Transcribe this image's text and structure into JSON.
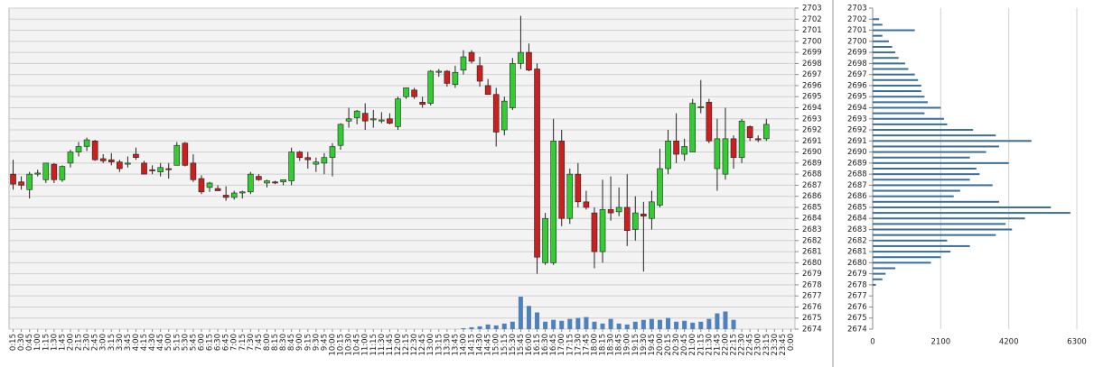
{
  "chart_data": [
    {
      "type": "candlestick",
      "categories": [
        "0:15",
        "0:30",
        "0:45",
        "1:00",
        "1:15",
        "1:30",
        "1:45",
        "2:00",
        "2:15",
        "2:30",
        "2:45",
        "3:00",
        "3:15",
        "3:30",
        "3:45",
        "4:00",
        "4:15",
        "4:30",
        "4:45",
        "5:00",
        "5:15",
        "5:30",
        "5:45",
        "6:00",
        "6:15",
        "6:30",
        "6:45",
        "7:00",
        "7:15",
        "7:30",
        "7:45",
        "8:00",
        "8:15",
        "8:30",
        "8:45",
        "9:00",
        "9:15",
        "9:30",
        "9:45",
        "10:00",
        "10:15",
        "10:30",
        "10:45",
        "11:00",
        "11:15",
        "11:30",
        "11:45",
        "12:00",
        "12:15",
        "12:30",
        "12:45",
        "13:00",
        "13:15",
        "13:30",
        "13:45",
        "14:00",
        "14:15",
        "14:30",
        "14:45",
        "15:00",
        "15:15",
        "15:30",
        "15:45",
        "16:00",
        "16:15",
        "16:30",
        "16:45",
        "17:00",
        "17:15",
        "17:30",
        "17:45",
        "18:00",
        "18:15",
        "18:30",
        "18:45",
        "19:00",
        "19:15",
        "19:30",
        "19:45",
        "20:00",
        "20:15",
        "20:30",
        "20:45",
        "21:00",
        "21:15",
        "21:30",
        "21:45",
        "22:00",
        "22:15",
        "22:30",
        "22:45",
        "23:00",
        "23:15",
        "23:30",
        "23:45",
        "0:00"
      ],
      "open": [
        2688.0,
        2687.3,
        2686.6,
        2688.0,
        2687.5,
        2688.9,
        2687.5,
        2689.0,
        2690.0,
        2690.5,
        2691.0,
        2689.4,
        2689.3,
        2689.1,
        2688.9,
        2689.8,
        2689.0,
        2688.4,
        2688.2,
        2688.5,
        2688.8,
        2690.8,
        2689.0,
        2687.6,
        2686.8,
        2686.7,
        2686.1,
        2685.9,
        2686.3,
        2686.4,
        2687.8,
        2687.2,
        2687.3,
        2687.3,
        2687.4,
        2690.0,
        2689.5,
        2688.9,
        2689.0,
        2689.5,
        2690.6,
        2692.8,
        2693.1,
        2693.5,
        2692.9,
        2692.8,
        2693.0,
        2692.3,
        2695.0,
        2695.6,
        2694.5,
        2694.4,
        2697.2,
        2697.3,
        2696.1,
        2697.4,
        2699.0,
        2697.8,
        2696.0,
        2695.2,
        2692.0,
        2694.0,
        2698.0,
        2699.0,
        2697.5,
        2680.0,
        2680.0,
        2691.0,
        2684.0,
        2688.0,
        2685.5,
        2684.5,
        2681.0,
        2684.8,
        2684.6,
        2685.0,
        2683.0,
        2684.4,
        2684.0,
        2685.2,
        2688.5,
        2691.0,
        2689.8,
        2690.0,
        2694.0,
        2694.5,
        2688.5,
        2688.0,
        2691.2,
        2689.5,
        2692.3,
        2691.2,
        2691.2,
        null,
        null,
        null
      ],
      "high": [
        2689.3,
        2687.8,
        2688.2,
        2688.4,
        2689.0,
        2689.0,
        2688.8,
        2690.2,
        2690.9,
        2691.3,
        2691.1,
        2689.8,
        2689.9,
        2689.3,
        2689.6,
        2690.4,
        2689.2,
        2688.8,
        2689.0,
        2689.0,
        2690.9,
        2690.9,
        2689.8,
        2687.9,
        2687.3,
        2687.0,
        2686.9,
        2686.5,
        2686.5,
        2688.2,
        2688.0,
        2687.5,
        2687.4,
        2687.5,
        2690.4,
        2690.1,
        2690.0,
        2689.5,
        2689.9,
        2690.8,
        2692.6,
        2694.0,
        2693.8,
        2694.4,
        2693.8,
        2693.6,
        2693.5,
        2695.0,
        2695.8,
        2695.8,
        2695.0,
        2697.4,
        2697.5,
        2697.4,
        2697.8,
        2699.2,
        2699.2,
        2698.6,
        2696.6,
        2695.8,
        2695.0,
        2698.5,
        2702.3,
        2699.8,
        2698.0,
        2684.5,
        2693.0,
        2692.0,
        2688.5,
        2689.0,
        2686.5,
        2685.0,
        2687.5,
        2687.8,
        2686.8,
        2688.0,
        2686.0,
        2685.5,
        2686.5,
        2690.3,
        2692.0,
        2693.5,
        2691.2,
        2694.8,
        2696.5,
        2694.8,
        2693.0,
        2694.0,
        2691.5,
        2693.0,
        2692.4,
        2691.5,
        2693.0,
        null,
        null,
        null
      ],
      "low": [
        2686.6,
        2686.6,
        2685.8,
        2687.8,
        2687.2,
        2687.2,
        2687.3,
        2688.6,
        2689.6,
        2690.1,
        2689.2,
        2689.0,
        2688.8,
        2688.2,
        2688.6,
        2689.3,
        2688.0,
        2688.0,
        2687.8,
        2687.6,
        2688.8,
        2688.7,
        2687.3,
        2686.2,
        2686.4,
        2686.5,
        2685.6,
        2685.7,
        2685.8,
        2686.2,
        2687.4,
        2686.8,
        2687.1,
        2687.0,
        2687.0,
        2689.2,
        2688.5,
        2688.2,
        2688.0,
        2687.8,
        2690.2,
        2692.2,
        2692.5,
        2692.0,
        2692.2,
        2692.6,
        2692.5,
        2692.0,
        2694.8,
        2694.8,
        2694.0,
        2694.2,
        2696.8,
        2695.9,
        2695.8,
        2697.0,
        2698.0,
        2695.9,
        2695.2,
        2690.5,
        2691.5,
        2693.8,
        2697.5,
        2697.3,
        2679.0,
        2679.8,
        2679.8,
        2683.3,
        2683.5,
        2685.0,
        2684.8,
        2679.5,
        2680.0,
        2683.8,
        2684.2,
        2681.5,
        2682.0,
        2679.2,
        2683.0,
        2685.0,
        2688.0,
        2689.0,
        2689.2,
        2690.0,
        2693.5,
        2690.8,
        2686.5,
        2687.5,
        2688.5,
        2689.0,
        2691.0,
        2690.9,
        2691.0,
        null,
        null,
        null
      ],
      "close": [
        2687.1,
        2687.0,
        2688.0,
        2688.1,
        2689.0,
        2687.5,
        2688.7,
        2690.0,
        2690.5,
        2691.1,
        2689.3,
        2689.2,
        2689.1,
        2688.5,
        2689.0,
        2689.5,
        2688.0,
        2688.3,
        2688.6,
        2688.4,
        2690.6,
        2688.8,
        2687.5,
        2686.4,
        2687.2,
        2686.5,
        2685.9,
        2686.3,
        2686.4,
        2688.0,
        2687.5,
        2687.4,
        2687.2,
        2687.5,
        2690.0,
        2689.5,
        2689.3,
        2689.1,
        2689.5,
        2690.5,
        2692.5,
        2693.0,
        2693.7,
        2692.8,
        2693.0,
        2692.9,
        2692.6,
        2694.8,
        2695.8,
        2695.0,
        2694.3,
        2697.3,
        2697.3,
        2696.2,
        2697.2,
        2698.6,
        2698.2,
        2696.4,
        2695.2,
        2691.8,
        2694.6,
        2698.0,
        2699.0,
        2697.4,
        2680.5,
        2684.0,
        2691.0,
        2684.0,
        2688.0,
        2685.5,
        2685.0,
        2681.0,
        2684.8,
        2684.5,
        2685.0,
        2682.9,
        2684.5,
        2684.2,
        2685.5,
        2688.5,
        2691.0,
        2689.8,
        2690.5,
        2694.4,
        2694.1,
        2691.0,
        2691.2,
        2691.2,
        2689.5,
        2692.8,
        2691.3,
        2691.1,
        2692.5,
        null,
        null,
        null
      ],
      "volume": [
        null,
        null,
        null,
        null,
        null,
        null,
        null,
        null,
        null,
        null,
        null,
        null,
        null,
        null,
        null,
        null,
        null,
        null,
        null,
        null,
        null,
        null,
        null,
        null,
        null,
        null,
        null,
        null,
        null,
        null,
        null,
        null,
        null,
        null,
        null,
        null,
        null,
        null,
        null,
        null,
        null,
        null,
        null,
        null,
        null,
        null,
        null,
        null,
        null,
        null,
        null,
        null,
        null,
        null,
        null,
        1,
        2,
        3,
        5,
        4,
        6,
        8,
        35,
        25,
        18,
        8,
        10,
        9,
        11,
        12,
        13,
        8,
        6,
        11,
        6,
        5,
        8,
        10,
        11,
        10,
        12,
        8,
        9,
        7,
        8,
        11,
        17,
        19,
        10,
        null,
        null,
        null,
        null,
        null,
        null,
        null
      ],
      "ylim": [
        2674,
        2703
      ],
      "yticks": [
        2674,
        2675,
        2676,
        2677,
        2678,
        2679,
        2680,
        2681,
        2682,
        2683,
        2684,
        2685,
        2686,
        2687,
        2688,
        2689,
        2690,
        2691,
        2692,
        2693,
        2694,
        2695,
        2696,
        2697,
        2698,
        2699,
        2700,
        2701,
        2702,
        2703
      ],
      "grid": true,
      "up_color": "#33cc33",
      "down_color": "#cc1f1f",
      "volume_color": "#4f81bd"
    },
    {
      "type": "barh",
      "prices": [
        2678,
        2678.5,
        2679,
        2679.5,
        2680,
        2680.5,
        2681,
        2681.5,
        2682,
        2682.5,
        2683,
        2683.5,
        2684,
        2684.5,
        2685,
        2685.5,
        2686,
        2686.5,
        2687,
        2687.5,
        2688,
        2688.5,
        2689,
        2689.5,
        2690,
        2690.5,
        2691,
        2691.5,
        2692,
        2692.5,
        2693,
        2693.5,
        2694,
        2694.5,
        2695,
        2695.5,
        2696,
        2696.5,
        2697,
        2697.5,
        2698,
        2698.5,
        2699,
        2699.5,
        2700,
        2700.5,
        2701,
        2701.5,
        2702
      ],
      "values": [
        100,
        300,
        400,
        700,
        1800,
        2100,
        2400,
        3000,
        2300,
        3800,
        4300,
        4100,
        4700,
        6100,
        5500,
        3900,
        2500,
        2700,
        3700,
        3000,
        3300,
        3200,
        4200,
        3000,
        3500,
        3900,
        4900,
        3800,
        3100,
        2300,
        2200,
        1600,
        2100,
        1700,
        1600,
        1500,
        1500,
        1400,
        1300,
        1100,
        1000,
        800,
        700,
        600,
        500,
        300,
        1300,
        300,
        200
      ],
      "xlim": [
        0,
        6300
      ],
      "xticks": [
        0,
        2100,
        4200,
        6300
      ],
      "ylim": [
        2674,
        2703
      ],
      "yticks": [
        2674,
        2675,
        2676,
        2677,
        2678,
        2679,
        2680,
        2681,
        2682,
        2683,
        2684,
        2685,
        2686,
        2687,
        2688,
        2689,
        2690,
        2691,
        2692,
        2693,
        2694,
        2695,
        2696,
        2697,
        2698,
        2699,
        2700,
        2701,
        2702,
        2703
      ],
      "grid": true,
      "color": "#3a6e98"
    }
  ]
}
